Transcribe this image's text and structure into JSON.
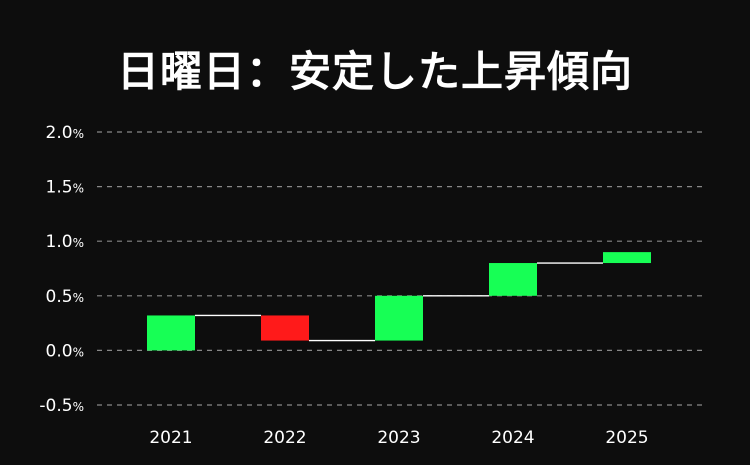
{
  "chart_data": {
    "type": "waterfall",
    "title": "日曜日：安定した上昇傾向",
    "categories": [
      "2021",
      "2022",
      "2023",
      "2024",
      "2025"
    ],
    "series": [
      {
        "values": [
          0.32,
          -0.23,
          0.41,
          0.3,
          0.1
        ],
        "bars": [
          {
            "start": 0.0,
            "end": 0.32
          },
          {
            "start": 0.32,
            "end": 0.09
          },
          {
            "start": 0.09,
            "end": 0.5
          },
          {
            "start": 0.5,
            "end": 0.8
          },
          {
            "start": 0.8,
            "end": 0.9
          }
        ]
      }
    ],
    "ylim": [
      -0.5,
      2.0
    ],
    "yticks": [
      -0.5,
      0.0,
      0.5,
      1.0,
      1.5,
      2.0
    ],
    "ytick_labels": [
      "-0.5%",
      "0.0%",
      "0.5%",
      "1.0%",
      "1.5%",
      "2.0%"
    ],
    "grid": true,
    "colors": {
      "increase": "#17ff55",
      "decrease": "#ff1a1a",
      "connector": "#ffffff",
      "grid": "#888888",
      "text": "#ffffff"
    }
  }
}
